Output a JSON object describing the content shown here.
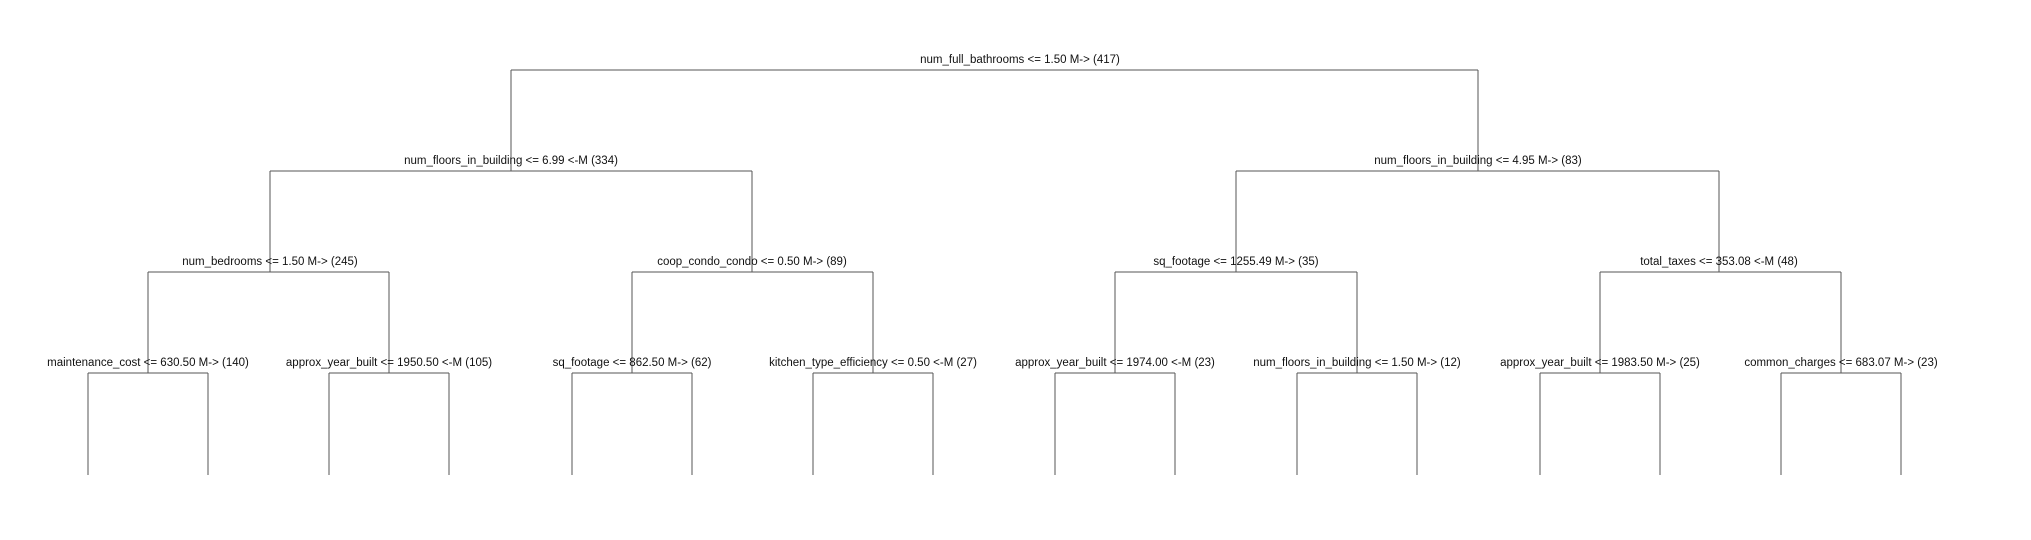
{
  "tree": {
    "label": "num_full_bathrooms <= 1.50 M-> (417)",
    "children": [
      {
        "label": "num_floors_in_building <= 6.99 <-M (334)",
        "children": [
          {
            "label": "num_bedrooms <= 1.50 M-> (245)",
            "children": [
              {
                "label": "maintenance_cost <= 630.50 M-> (140)",
                "children": []
              },
              {
                "label": "approx_year_built <= 1950.50 <-M (105)",
                "children": []
              }
            ]
          },
          {
            "label": "coop_condo_condo <= 0.50 M-> (89)",
            "children": [
              {
                "label": "sq_footage <= 862.50 M-> (62)",
                "children": []
              },
              {
                "label": "kitchen_type_efficiency <= 0.50 <-M (27)",
                "children": []
              }
            ]
          }
        ]
      },
      {
        "label": "num_floors_in_building <= 4.95 M-> (83)",
        "children": [
          {
            "label": "sq_footage <= 1255.49 M-> (35)",
            "children": [
              {
                "label": "approx_year_built <= 1974.00 <-M (23)",
                "children": []
              },
              {
                "label": "num_floors_in_building <= 1.50 M-> (12)",
                "children": []
              }
            ]
          },
          {
            "label": "total_taxes <= 353.08 <-M (48)",
            "children": [
              {
                "label": "approx_year_built <= 1983.50 M-> (25)",
                "children": []
              },
              {
                "label": "common_charges <= 683.07 M-> (23)",
                "children": []
              }
            ]
          }
        ]
      }
    ]
  }
}
